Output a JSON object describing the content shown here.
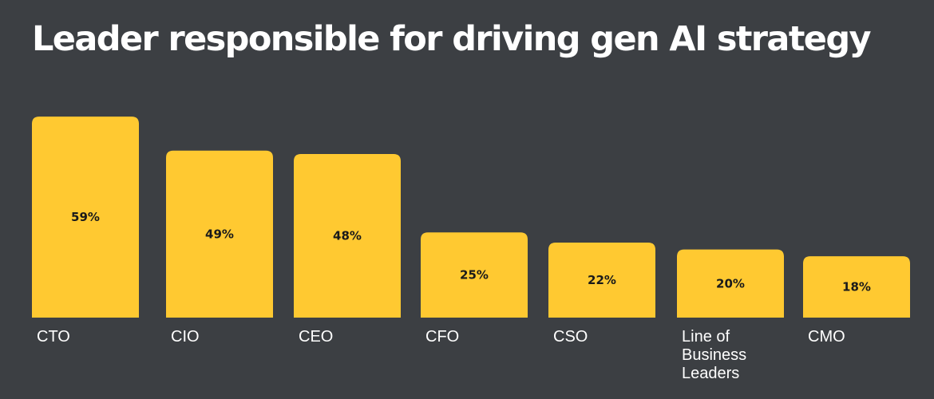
{
  "chart_data": {
    "type": "bar",
    "title": "Leader responsible for driving gen AI strategy",
    "categories": [
      [
        "CTO"
      ],
      [
        "CIO"
      ],
      [
        "CEO"
      ],
      [
        "CFO"
      ],
      [
        "CSO"
      ],
      [
        "Line of",
        "Business",
        "Leaders"
      ],
      [
        "CMO"
      ]
    ],
    "values": [
      59,
      49,
      48,
      25,
      22,
      20,
      18
    ],
    "value_labels": [
      "59%",
      "49%",
      "48%",
      "25%",
      "22%",
      "20%",
      "18%"
    ],
    "value_unit": "%",
    "ylim": [
      0,
      70
    ],
    "xlabel": "",
    "ylabel": "",
    "grid": false,
    "legend": "none",
    "bar_color": "#ffc931"
  }
}
